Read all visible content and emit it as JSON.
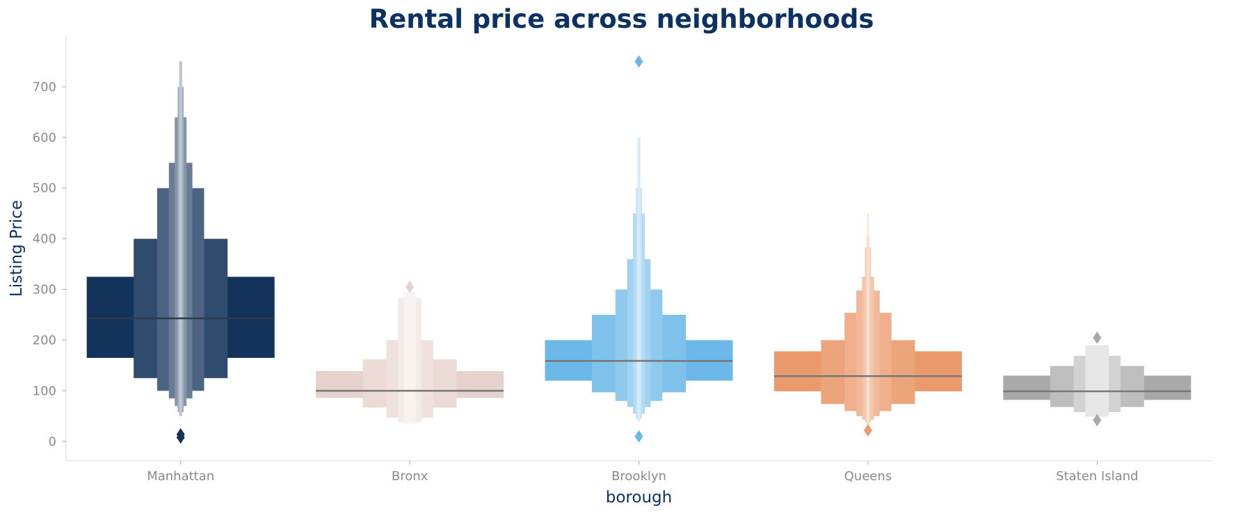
{
  "chart_data": {
    "type": "boxen",
    "title": "Rental price across neighborhoods",
    "xlabel": "borough",
    "ylabel": "Listing Price",
    "ylim": [
      -38,
      800
    ],
    "yticks": [
      0,
      100,
      200,
      300,
      400,
      500,
      600,
      700
    ],
    "grid": false,
    "categories": [
      "Manhattan",
      "Bronx",
      "Brooklyn",
      "Queens",
      "Staten Island"
    ],
    "colors": [
      "#13335a",
      "#e6d2cc",
      "#6cb8e8",
      "#ea9a6c",
      "#a9a9a9"
    ],
    "series": [
      {
        "category": "Manhattan",
        "median": 243,
        "levels": [
          {
            "low": 165,
            "high": 325,
            "w": 1.0
          },
          {
            "low": 125,
            "high": 400,
            "w": 0.5
          },
          {
            "low": 100,
            "high": 500,
            "w": 0.25
          },
          {
            "low": 85,
            "high": 550,
            "w": 0.125
          },
          {
            "low": 70,
            "high": 640,
            "w": 0.063
          },
          {
            "low": 58,
            "high": 700,
            "w": 0.032
          },
          {
            "low": 50,
            "high": 750,
            "w": 0.016
          }
        ],
        "outliers": [
          8,
          14
        ]
      },
      {
        "category": "Bronx",
        "median": 100,
        "levels": [
          {
            "low": 86,
            "high": 139,
            "w": 1.0
          },
          {
            "low": 67,
            "high": 162,
            "w": 0.5
          },
          {
            "low": 47,
            "high": 200,
            "w": 0.25
          },
          {
            "low": 38,
            "high": 283,
            "w": 0.125
          },
          {
            "low": 35,
            "high": 295,
            "w": 0.063
          }
        ],
        "outliers": [
          305
        ]
      },
      {
        "category": "Brooklyn",
        "median": 159,
        "levels": [
          {
            "low": 120,
            "high": 200,
            "w": 1.0
          },
          {
            "low": 97,
            "high": 250,
            "w": 0.5
          },
          {
            "low": 80,
            "high": 300,
            "w": 0.25
          },
          {
            "low": 68,
            "high": 360,
            "w": 0.125
          },
          {
            "low": 55,
            "high": 450,
            "w": 0.063
          },
          {
            "low": 45,
            "high": 500,
            "w": 0.032
          },
          {
            "low": 40,
            "high": 600,
            "w": 0.016
          }
        ],
        "outliers": [
          10,
          750
        ]
      },
      {
        "category": "Queens",
        "median": 129,
        "levels": [
          {
            "low": 99,
            "high": 178,
            "w": 1.0
          },
          {
            "low": 74,
            "high": 200,
            "w": 0.5
          },
          {
            "low": 60,
            "high": 254,
            "w": 0.25
          },
          {
            "low": 50,
            "high": 298,
            "w": 0.125
          },
          {
            "low": 43,
            "high": 325,
            "w": 0.063
          },
          {
            "low": 38,
            "high": 383,
            "w": 0.032
          },
          {
            "low": 33,
            "high": 405,
            "w": 0.016
          },
          {
            "low": 30,
            "high": 450,
            "w": 0.008
          }
        ],
        "outliers": [
          22
        ]
      },
      {
        "category": "Staten Island",
        "median": 99,
        "levels": [
          {
            "low": 82,
            "high": 130,
            "w": 1.0
          },
          {
            "low": 68,
            "high": 149,
            "w": 0.5
          },
          {
            "low": 58,
            "high": 169,
            "w": 0.25
          },
          {
            "low": 49,
            "high": 190,
            "w": 0.125
          }
        ],
        "outliers": [
          42,
          205
        ]
      }
    ]
  }
}
